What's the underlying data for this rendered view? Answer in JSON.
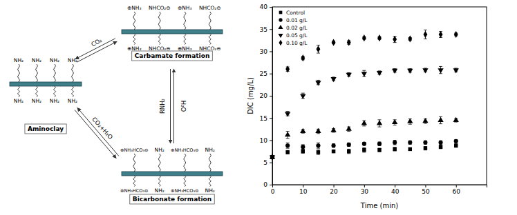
{
  "diagram": {
    "nodes": [
      {
        "label": "Aminoclay",
        "top": [
          "NH₂",
          "NH₂",
          "NH₂",
          "NH₂"
        ],
        "bottom": [
          "NH₂",
          "NH₂",
          "NH₂",
          "NH₂"
        ]
      },
      {
        "label": "Carbamate formation",
        "top": [
          "⊕NH₃",
          "NHCO₂⊖",
          "⊕NH₃",
          "NHCO₂⊖"
        ],
        "bottom": [
          "⊕NH₃",
          "NHCO₂⊖",
          "⊕NH₃",
          "NHCO₂⊖"
        ]
      },
      {
        "label": "Bicarbonate formation",
        "top": [
          "⊕NH₃HCO₃⊖",
          "NH₂",
          "⊕NH₃HCO₃⊖",
          "NH₂"
        ],
        "bottom": [
          "⊕NH₃HCO₃⊖",
          "NH₂",
          "⊕NH₃HCO₃⊖",
          "NH₂"
        ]
      }
    ],
    "edges": [
      {
        "from": "Aminoclay",
        "to": "Carbamate formation",
        "label": "CO₂"
      },
      {
        "from": "Aminoclay",
        "to": "Bicarbonate formation",
        "label": "CO₂+H₂O"
      },
      {
        "from": "Carbamate formation",
        "to": "Bicarbonate formation",
        "label": "H₂O"
      },
      {
        "from": "Bicarbonate formation",
        "to": "Carbamate formation",
        "label": "RNH₂"
      }
    ]
  },
  "chart_data": {
    "type": "scatter",
    "x_label": "Time (min)",
    "y_label": "DIC (mg/L)",
    "x": [
      0,
      5,
      10,
      15,
      20,
      25,
      30,
      35,
      40,
      45,
      50,
      55,
      60
    ],
    "xlim": [
      0,
      70
    ],
    "xticks": [
      0,
      10,
      20,
      30,
      40,
      50,
      60
    ],
    "ylim": [
      0,
      40
    ],
    "yticks": [
      0,
      5,
      10,
      15,
      20,
      25,
      30,
      35,
      40
    ],
    "legend": "upper left",
    "series": [
      {
        "name": "Control",
        "color": "#000000",
        "marker": "square",
        "values": [
          6.2,
          7.3,
          7.5,
          7.3,
          7.5,
          7.5,
          7.8,
          7.8,
          8.0,
          8.0,
          8.2,
          8.5,
          8.8
        ],
        "errors": [
          0.3,
          0.4,
          0.4,
          0.5,
          0.3,
          0.5,
          0.5,
          0.4,
          0.4,
          0.3,
          0.4,
          0.4,
          0.4
        ]
      },
      {
        "name": "0.01 g/L",
        "color": "#000000",
        "marker": "circle",
        "values": [
          6.2,
          8.8,
          8.5,
          8.8,
          8.8,
          9.0,
          9.2,
          9.2,
          9.5,
          9.5,
          9.5,
          9.5,
          9.8
        ],
        "errors": [
          0.3,
          0.6,
          0.5,
          0.6,
          0.4,
          0.4,
          0.3,
          0.4,
          0.5,
          0.4,
          0.4,
          0.4,
          0.3
        ]
      },
      {
        "name": "0.02 g/L",
        "color": "#000000",
        "marker": "triangle-up",
        "values": [
          6.2,
          11.2,
          12.0,
          12.0,
          12.2,
          12.5,
          13.8,
          13.8,
          14.0,
          14.2,
          14.3,
          14.5,
          14.5
        ],
        "errors": [
          0.3,
          0.8,
          0.4,
          0.5,
          0.4,
          0.5,
          0.6,
          0.8,
          0.6,
          0.6,
          0.5,
          0.8,
          0.4
        ]
      },
      {
        "name": "0.05 g/L",
        "color": "#000000",
        "marker": "triangle-down",
        "values": [
          6.2,
          16.0,
          20.0,
          23.0,
          23.8,
          24.8,
          25.0,
          25.2,
          25.7,
          25.7,
          25.8,
          25.8,
          25.8
        ],
        "errors": [
          0.3,
          0.5,
          0.6,
          0.5,
          0.4,
          0.4,
          0.7,
          0.4,
          0.4,
          0.4,
          0.4,
          0.8,
          0.4
        ]
      },
      {
        "name": "0.10 g/L",
        "color": "#000000",
        "marker": "diamond",
        "values": [
          6.2,
          26.0,
          28.5,
          30.5,
          32.0,
          32.0,
          33.0,
          33.0,
          32.7,
          32.8,
          33.8,
          33.8,
          33.8
        ],
        "errors": [
          0.3,
          0.5,
          0.4,
          0.9,
          0.3,
          0.4,
          0.3,
          0.3,
          0.7,
          0.3,
          1.0,
          0.7,
          0.3
        ]
      }
    ]
  }
}
